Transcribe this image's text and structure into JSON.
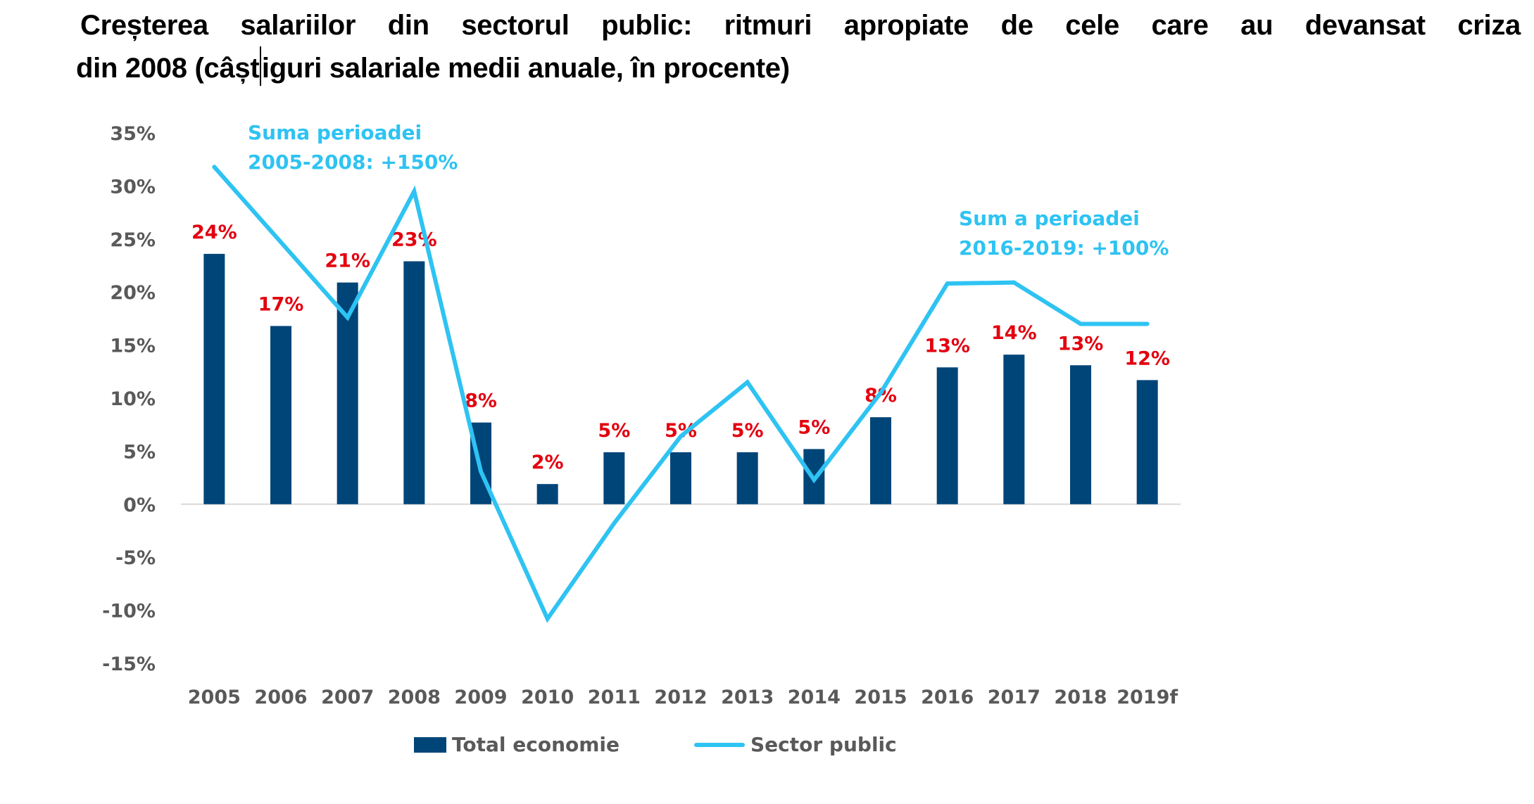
{
  "title": {
    "line1": "Creșterea salariilor din sectorul public: ritmuri apropiate de cele care au devansat criza",
    "line2_before_cursor": "din 2008 (câșt",
    "line2_after_cursor": "iguri salariale medii anuale, în procente)"
  },
  "colors": {
    "bar": "#004578",
    "line": "#2EC3F2",
    "data_label": "#E3000F",
    "axis_text": "#595959",
    "baseline": "#D9D9D9"
  },
  "chart_data": {
    "type": "bar",
    "title": "Creșterea salariilor din sectorul public: ritmuri apropiate de cele care au devansat criza din 2008 (câștiguri salariale medii anuale, în procente)",
    "xlabel": "",
    "ylabel": "",
    "ylim": [
      -15,
      35
    ],
    "yticks": [
      35,
      30,
      25,
      20,
      15,
      10,
      5,
      0,
      -5,
      -10,
      -15
    ],
    "ytick_labels": [
      "35%",
      "30%",
      "25%",
      "20%",
      "15%",
      "10%",
      "5%",
      "0%",
      "-5%",
      "-10%",
      "-15%"
    ],
    "grid": false,
    "categories": [
      "2005",
      "2006",
      "2007",
      "2008",
      "2009",
      "2010",
      "2011",
      "2012",
      "2013",
      "2014",
      "2015",
      "2016",
      "2017",
      "2018",
      "2019f"
    ],
    "series": [
      {
        "name": "Total economie",
        "type": "bar",
        "values": [
          23.6,
          16.8,
          20.9,
          22.9,
          7.7,
          1.9,
          4.9,
          4.9,
          4.9,
          5.2,
          8.2,
          12.9,
          14.1,
          13.1,
          11.7
        ],
        "data_labels": [
          "24%",
          "17%",
          "21%",
          "23%",
          "8%",
          "2%",
          "5%",
          "5%",
          "5%",
          "5%",
          "8%",
          "13%",
          "14%",
          "13%",
          "12%"
        ]
      },
      {
        "name": "Sector public",
        "type": "line",
        "values": [
          31.8,
          24.7,
          17.6,
          29.5,
          3.1,
          -10.8,
          -1.8,
          6.4,
          11.5,
          2.3,
          10.5,
          20.8,
          20.9,
          17.0,
          17.0
        ]
      }
    ],
    "annotations": [
      {
        "lines": [
          "Suma perioadei",
          "2005-2008: +150%"
        ],
        "near": "2006-2008 top"
      },
      {
        "lines": [
          "Sum a perioadei",
          "2016-2019: +100%"
        ],
        "near": "2016-2019 top"
      }
    ],
    "legend": {
      "placement": "bottom",
      "entries": [
        "Total economie",
        "Sector public"
      ]
    }
  }
}
